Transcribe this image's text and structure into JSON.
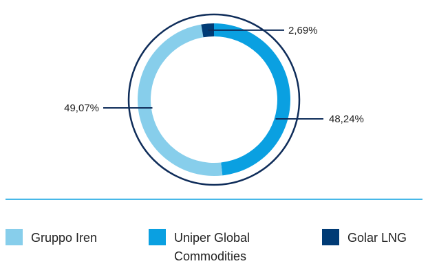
{
  "chart_data": {
    "type": "pie",
    "variant": "donut",
    "title": "",
    "categories": [
      "Gruppo Iren",
      "Uniper Global Commodities",
      "Golar LNG"
    ],
    "values": [
      49.07,
      48.24,
      2.69
    ],
    "value_labels": [
      "49,07%",
      "48,24%",
      "2,69%"
    ],
    "colors": {
      "Gruppo Iren": "#87CEEB",
      "Uniper Global Commodities": "#0AA0E1",
      "Golar LNG": "#003B75"
    },
    "legend": {
      "placement": "bottom",
      "entries": [
        {
          "label_lines": [
            "Gruppo Iren"
          ],
          "color": "#87CEEB"
        },
        {
          "label_lines": [
            "Uniper Global",
            "Commodities"
          ],
          "color": "#0AA0E1"
        },
        {
          "label_lines": [
            "Golar LNG"
          ],
          "color": "#003B75"
        }
      ]
    },
    "outer_ring_color": "#0F2D5A",
    "divider_color": "#0AA0E1",
    "callout_color": "#0F2D5A"
  }
}
